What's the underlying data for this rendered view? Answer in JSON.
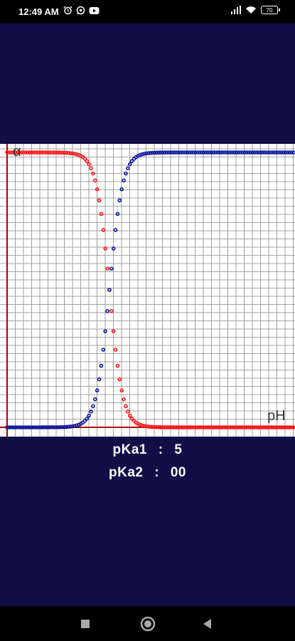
{
  "status_bar": {
    "time": "12:49 AM",
    "battery": "70",
    "icons": [
      "alarm-icon",
      "whatsapp-icon",
      "youtube-icon",
      "signal-icon",
      "wifi-icon",
      "battery-icon"
    ]
  },
  "chart_data": {
    "type": "scatter",
    "x_label": "pH",
    "y_label": "α",
    "grid": true,
    "x_range": [
      0,
      14
    ],
    "y_range": [
      0,
      1
    ],
    "series": [
      {
        "color": "#ff1a1a",
        "curve": "acid fraction",
        "pKa": 5,
        "description_hidden": true
      },
      {
        "color": "#0d1a9e",
        "curve": "base fraction",
        "pKa": 5,
        "description_hidden": true
      }
    ]
  },
  "readout": {
    "pka1_label": "pKa1",
    "pka1_value": "5",
    "pka2_label": "pKa2",
    "pka2_value": "00",
    "separator": ":"
  },
  "colors": {
    "background": "#0f0f45",
    "acid_curve": "#ff1a1a",
    "base_curve": "#0d1a9e",
    "grid": "#888888",
    "axis": "#b00000"
  }
}
